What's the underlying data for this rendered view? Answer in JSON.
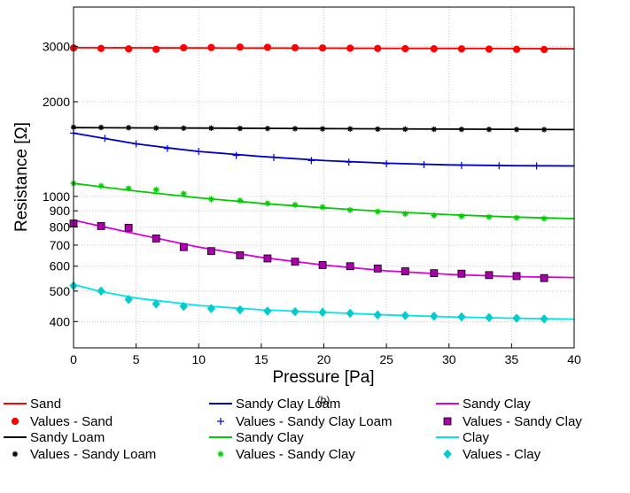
{
  "chart_data": {
    "type": "line",
    "caption": "(b)",
    "xlabel": "Pressure [Pa]",
    "ylabel": "Resistance [Ω]",
    "xlim": [
      0,
      40
    ],
    "ylim": [
      330,
      4000
    ],
    "yscale": "log",
    "xticks": [
      0,
      5,
      10,
      15,
      20,
      25,
      30,
      35,
      40
    ],
    "yticks": [
      {
        "value": 400,
        "label": "400"
      },
      {
        "value": 500,
        "label": "500"
      },
      {
        "value": 600,
        "label": "600"
      },
      {
        "value": 700,
        "label": "700"
      },
      {
        "value": 800,
        "label": "800"
      },
      {
        "value": 900,
        "label": "900"
      },
      {
        "value": 1000,
        "label": "1000"
      },
      {
        "value": 2000,
        "label": "2000"
      },
      {
        "value": 3000,
        "label": "3000"
      }
    ],
    "grid": true,
    "legend_position": "bottom",
    "series": [
      {
        "name": "Sand",
        "kind": "fit",
        "color": "#ff0000",
        "marker": "none",
        "x": [
          0,
          5,
          10,
          15,
          20,
          25,
          30,
          35,
          40
        ],
        "y": [
          2970,
          2968,
          2966,
          2964,
          2961,
          2958,
          2955,
          2952,
          2948
        ]
      },
      {
        "name": "Values - Sand",
        "kind": "values",
        "color": "#ff0000",
        "marker": "circle",
        "x": [
          0,
          2.2,
          4.4,
          6.6,
          8.8,
          11,
          13.3,
          15.5,
          17.7,
          19.9,
          22.1,
          24.3,
          26.5,
          28.8,
          31,
          33.2,
          35.4,
          37.6
        ],
        "y": [
          2965,
          2955,
          2945,
          2935,
          2970,
          2975,
          2985,
          2980,
          2970,
          2965,
          2960,
          2955,
          2950,
          2948,
          2945,
          2940,
          2935,
          2930
        ]
      },
      {
        "name": "Sandy Loam",
        "kind": "fit",
        "color": "#000000",
        "marker": "none",
        "x": [
          0,
          5,
          10,
          15,
          20,
          25,
          30,
          35,
          40
        ],
        "y": [
          1655,
          1652,
          1649,
          1646,
          1643,
          1640,
          1637,
          1634,
          1631
        ]
      },
      {
        "name": "Values - Sandy Loam",
        "kind": "values",
        "color": "#000000",
        "marker": "plus-star",
        "x": [
          0,
          2.2,
          4.4,
          6.6,
          8.8,
          11,
          13.3,
          15.5,
          17.7,
          19.9,
          22.1,
          24.3,
          26.5,
          28.8,
          31,
          33.2,
          35.4,
          37.6
        ],
        "y": [
          1660,
          1657,
          1654,
          1651,
          1648,
          1648,
          1645,
          1644,
          1642,
          1640,
          1639,
          1637,
          1636,
          1635,
          1634,
          1633,
          1632,
          1631
        ]
      },
      {
        "name": "Sandy Clay Loam",
        "kind": "fit",
        "color": "#0000cc",
        "marker": "none",
        "x": [
          0,
          2,
          5,
          8,
          10,
          15,
          20,
          25,
          30,
          35,
          40
        ],
        "y": [
          1590,
          1540,
          1470,
          1420,
          1390,
          1340,
          1300,
          1275,
          1260,
          1252,
          1250
        ]
      },
      {
        "name": "Values - Sandy Clay Loam",
        "kind": "values",
        "color": "#0000cc",
        "marker": "plus",
        "x": [
          0,
          2.5,
          5,
          7.5,
          10,
          13,
          16,
          19,
          22,
          25,
          28,
          31,
          34,
          37
        ],
        "y": [
          1590,
          1530,
          1470,
          1420,
          1390,
          1350,
          1330,
          1300,
          1285,
          1270,
          1262,
          1255,
          1252,
          1250
        ]
      },
      {
        "name": "Sandy Clay",
        "kind": "fit",
        "color": "#00cc00",
        "marker": "none",
        "x": [
          0,
          5,
          10,
          15,
          20,
          25,
          30,
          35,
          40
        ],
        "y": [
          1100,
          1040,
          990,
          950,
          920,
          895,
          875,
          860,
          850
        ]
      },
      {
        "name": "Values - Sandy Clay",
        "kind": "values",
        "color": "#00cc00",
        "marker": "star",
        "x": [
          0,
          2.2,
          4.4,
          6.6,
          8.8,
          11,
          13.3,
          15.5,
          17.7,
          19.9,
          22.1,
          24.3,
          26.5,
          28.8,
          31,
          33.2,
          35.4,
          37.6
        ],
        "y": [
          1100,
          1080,
          1060,
          1050,
          1020,
          980,
          970,
          950,
          940,
          925,
          905,
          895,
          880,
          870,
          865,
          860,
          855,
          850
        ]
      },
      {
        "name": "Sandy Clay",
        "kind": "fit",
        "color": "#dd00dd",
        "marker": "none",
        "x": [
          0,
          5,
          10,
          15,
          20,
          25,
          30,
          35,
          40
        ],
        "y": [
          840,
          760,
          690,
          640,
          605,
          580,
          565,
          556,
          552
        ]
      },
      {
        "name": "Values - Sandy Clay",
        "kind": "values",
        "color": "#aa00aa",
        "marker": "square",
        "x": [
          0,
          2.2,
          4.4,
          6.6,
          8.8,
          11,
          13.3,
          15.5,
          17.7,
          19.9,
          22.1,
          24.3,
          26.5,
          28.8,
          31,
          33.2,
          35.4,
          37.6
        ],
        "y": [
          820,
          805,
          795,
          735,
          690,
          670,
          650,
          635,
          620,
          605,
          600,
          590,
          578,
          570,
          568,
          562,
          558,
          550
        ]
      },
      {
        "name": "Clay",
        "kind": "fit",
        "color": "#00e5e5",
        "marker": "none",
        "x": [
          0,
          2,
          5,
          10,
          15,
          20,
          25,
          30,
          35,
          40
        ],
        "y": [
          525,
          500,
          475,
          450,
          436,
          428,
          420,
          414,
          410,
          407
        ]
      },
      {
        "name": "Values - Clay",
        "kind": "values",
        "color": "#00cccc",
        "marker": "diamond",
        "x": [
          0,
          2.2,
          4.4,
          6.6,
          8.8,
          11,
          13.3,
          15.5,
          17.7,
          19.9,
          22.1,
          24.3,
          26.5,
          28.8,
          31,
          33.2,
          35.4,
          37.6
        ],
        "y": [
          520,
          500,
          470,
          455,
          447,
          440,
          436,
          432,
          430,
          428,
          425,
          420,
          418,
          416,
          414,
          412,
          410,
          408
        ]
      }
    ]
  }
}
